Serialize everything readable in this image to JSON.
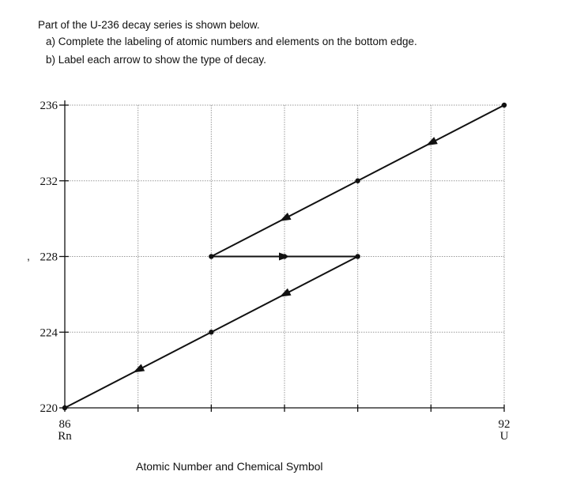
{
  "question": {
    "intro": "Part of the U-236 decay series is shown below.",
    "part_a": "a) Complete the labeling of atomic numbers and elements on the bottom edge.",
    "part_b": "b) Label each arrow to show the type of decay."
  },
  "stray_mark": ",",
  "chart_data": {
    "type": "line",
    "title": "",
    "xlabel": "Atomic Number and Chemical Symbol",
    "ylabel": "",
    "xlim": [
      86,
      92
    ],
    "ylim": [
      220,
      236
    ],
    "x_tick_labels": [
      {
        "x": 86,
        "number": "86",
        "symbol": "Rn"
      },
      {
        "x": 92,
        "number": "92",
        "symbol": "U"
      }
    ],
    "y_ticks": [
      220,
      224,
      228,
      232,
      236
    ],
    "grid": true,
    "points": [
      {
        "x": 92,
        "y": 236
      },
      {
        "x": 90,
        "y": 232
      },
      {
        "x": 88,
        "y": 228
      },
      {
        "x": 89,
        "y": 228
      },
      {
        "x": 90,
        "y": 228
      },
      {
        "x": 88,
        "y": 224
      },
      {
        "x": 86,
        "y": 220
      }
    ],
    "arrows": [
      {
        "from": [
          92,
          236
        ],
        "to": [
          90,
          232
        ],
        "type": "diagonal"
      },
      {
        "from": [
          90,
          232
        ],
        "to": [
          88,
          228
        ],
        "type": "diagonal"
      },
      {
        "from": [
          88,
          228
        ],
        "to": [
          90,
          228
        ],
        "type": "horizontal"
      },
      {
        "from": [
          90,
          228
        ],
        "to": [
          88,
          224
        ],
        "type": "diagonal"
      },
      {
        "from": [
          88,
          224
        ],
        "to": [
          86,
          220
        ],
        "type": "diagonal"
      }
    ]
  }
}
